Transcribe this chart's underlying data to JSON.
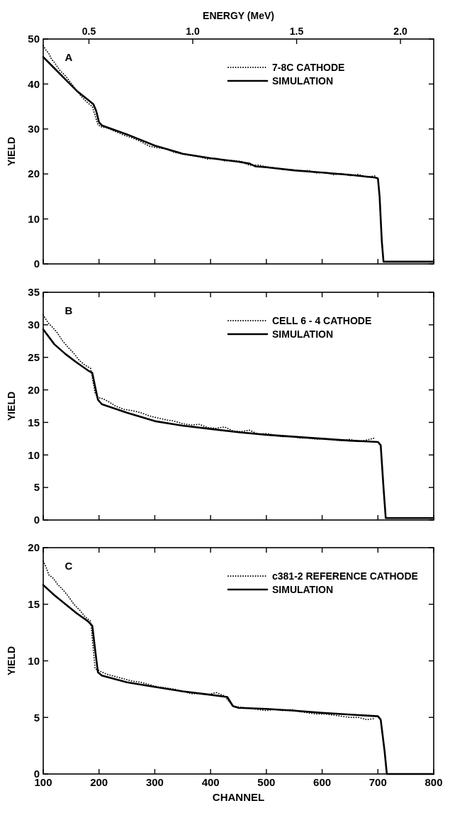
{
  "chart_data": [
    {
      "type": "line",
      "title": "A",
      "ylabel": "YIELD",
      "x2label": "ENERGY (MeV)",
      "xlim": [
        100,
        800
      ],
      "xticks": [
        100,
        200,
        300,
        400,
        500,
        600,
        700,
        800
      ],
      "x2lim": [
        0.28,
        2.16
      ],
      "x2ticks": [
        {
          "value": 0.5,
          "label": "0.5"
        },
        {
          "value": 1.0,
          "label": "1.0"
        },
        {
          "value": 1.5,
          "label": "1.5"
        },
        {
          "value": 2.0,
          "label": "2.0"
        }
      ],
      "ylim": [
        0,
        50
      ],
      "yticks": [
        0,
        10,
        20,
        30,
        40,
        50
      ],
      "tick_labels": "y",
      "legend": "top right",
      "series": [
        {
          "name": "7-8C CATHODE",
          "type": "line",
          "color": "#000000",
          "line_style": "dotted",
          "x": [
            100,
            105,
            110,
            115,
            120,
            130,
            140,
            150,
            160,
            170,
            180,
            188,
            193,
            198,
            203,
            215,
            230,
            245,
            260,
            275,
            290,
            305,
            320,
            335,
            350,
            365,
            380,
            395,
            410,
            425,
            440,
            455,
            470,
            485,
            500,
            515,
            530,
            545,
            560,
            575,
            590,
            605,
            620,
            635,
            650,
            665,
            680,
            695
          ],
          "values": [
            48.5,
            47.5,
            46.8,
            45.5,
            44.8,
            43,
            41.8,
            40.2,
            38.5,
            37,
            35.8,
            35,
            33,
            31,
            30.5,
            30.2,
            29.4,
            28.6,
            28,
            27.2,
            26.2,
            25.8,
            25.6,
            24.8,
            24.4,
            24.1,
            23.8,
            23.3,
            23.5,
            22.9,
            23,
            22.8,
            21.9,
            22,
            21.6,
            21.3,
            21,
            20.9,
            20.6,
            20.8,
            20.2,
            20.4,
            19.8,
            20.1,
            19.6,
            19.9,
            19.3,
            19.6
          ]
        },
        {
          "name": "SIMULATION",
          "type": "line",
          "color": "#000000",
          "line_style": "solid",
          "x": [
            100,
            120,
            140,
            160,
            180,
            190,
            195,
            200,
            205,
            250,
            300,
            350,
            400,
            450,
            470,
            480,
            500,
            550,
            600,
            650,
            695,
            700,
            703,
            707,
            710,
            800
          ],
          "values": [
            46,
            43.5,
            41,
            38.5,
            36.5,
            35.5,
            34,
            31.5,
            30.8,
            28.8,
            26.3,
            24.5,
            23.5,
            22.7,
            22.3,
            21.7,
            21.5,
            20.8,
            20.3,
            19.8,
            19.2,
            19,
            15,
            5,
            0.5,
            0.5
          ]
        }
      ]
    },
    {
      "type": "line",
      "title": "B",
      "ylabel": "YIELD",
      "xlim": [
        100,
        800
      ],
      "xticks": [
        100,
        200,
        300,
        400,
        500,
        600,
        700,
        800
      ],
      "ylim": [
        0,
        35
      ],
      "yticks": [
        0,
        5,
        10,
        15,
        20,
        25,
        30,
        35
      ],
      "tick_labels": "y",
      "legend": "top right",
      "series": [
        {
          "name": "CELL 6 - 4 CATHODE",
          "type": "line",
          "color": "#000000",
          "line_style": "dotted",
          "x": [
            100,
            105,
            110,
            118,
            125,
            135,
            145,
            155,
            165,
            175,
            185,
            193,
            198,
            205,
            215,
            230,
            245,
            260,
            275,
            290,
            305,
            320,
            335,
            350,
            365,
            380,
            395,
            410,
            425,
            440,
            455,
            470,
            485,
            500,
            515,
            530,
            545,
            560,
            575,
            590,
            605,
            620,
            635,
            650,
            665,
            680,
            695
          ],
          "values": [
            31.5,
            30.8,
            30.2,
            29.5,
            28.8,
            27.5,
            26.5,
            25.6,
            24.5,
            23.8,
            23.3,
            19.5,
            18.8,
            18.7,
            18.3,
            17.5,
            17,
            16.8,
            16.5,
            16,
            15.7,
            15.4,
            15.2,
            14.8,
            14.6,
            14.7,
            14.2,
            14.1,
            14.3,
            13.7,
            13.6,
            13.8,
            13.2,
            13.3,
            13,
            12.8,
            12.9,
            12.6,
            12.6,
            12.4,
            12.5,
            12.3,
            12.2,
            12.4,
            12.1,
            12.3,
            12.6
          ]
        },
        {
          "name": "SIMULATION",
          "type": "line",
          "color": "#000000",
          "line_style": "solid",
          "x": [
            100,
            120,
            140,
            160,
            180,
            188,
            193,
            198,
            205,
            250,
            300,
            350,
            400,
            450,
            500,
            550,
            600,
            650,
            700,
            705,
            710,
            714,
            800
          ],
          "values": [
            29.3,
            27,
            25.5,
            24.2,
            23,
            22.6,
            20.5,
            18.5,
            17.8,
            16.5,
            15.2,
            14.5,
            14,
            13.5,
            13.1,
            12.8,
            12.5,
            12.2,
            12,
            11.5,
            5,
            0.3,
            0.3
          ]
        }
      ]
    },
    {
      "type": "line",
      "title": "C",
      "ylabel": "YIELD",
      "xlabel": "CHANNEL",
      "xlim": [
        100,
        800
      ],
      "xticks": [
        100,
        200,
        300,
        400,
        500,
        600,
        700,
        800
      ],
      "ylim": [
        0,
        20
      ],
      "yticks": [
        0,
        5,
        10,
        15,
        20
      ],
      "legend": "top right",
      "series": [
        {
          "name": "c381-2 REFERENCE CATHODE",
          "type": "line",
          "color": "#000000",
          "line_style": "dotted",
          "x": [
            100,
            105,
            110,
            118,
            125,
            135,
            145,
            155,
            165,
            175,
            185,
            193,
            198,
            205,
            215,
            230,
            245,
            260,
            275,
            290,
            305,
            320,
            335,
            350,
            365,
            380,
            395,
            410,
            425,
            440,
            455,
            470,
            485,
            500,
            515,
            530,
            545,
            560,
            575,
            590,
            605,
            620,
            635,
            650,
            665,
            680,
            695
          ],
          "values": [
            18.8,
            18.3,
            17.6,
            17.3,
            16.8,
            16.3,
            15.7,
            15,
            14.5,
            13.9,
            13.5,
            9.3,
            9.2,
            9,
            8.8,
            8.6,
            8.4,
            8.2,
            8.1,
            7.9,
            7.7,
            7.6,
            7.5,
            7.3,
            7.1,
            7.1,
            7,
            7.2,
            6.9,
            6,
            5.9,
            5.8,
            5.7,
            5.6,
            5.7,
            5.6,
            5.7,
            5.5,
            5.4,
            5.3,
            5.3,
            5.2,
            5.1,
            5,
            5,
            4.8,
            4.9
          ]
        },
        {
          "name": "SIMULATION",
          "type": "line",
          "color": "#000000",
          "line_style": "solid",
          "x": [
            100,
            120,
            140,
            160,
            180,
            188,
            193,
            198,
            205,
            250,
            300,
            350,
            400,
            430,
            440,
            450,
            500,
            550,
            600,
            650,
            700,
            705,
            712,
            716,
            800
          ],
          "values": [
            16.7,
            15.8,
            15,
            14.2,
            13.5,
            13.1,
            11,
            9,
            8.7,
            8.1,
            7.7,
            7.3,
            7,
            6.8,
            6,
            5.85,
            5.75,
            5.6,
            5.4,
            5.25,
            5.1,
            4.8,
            2,
            0,
            0
          ]
        }
      ]
    }
  ]
}
